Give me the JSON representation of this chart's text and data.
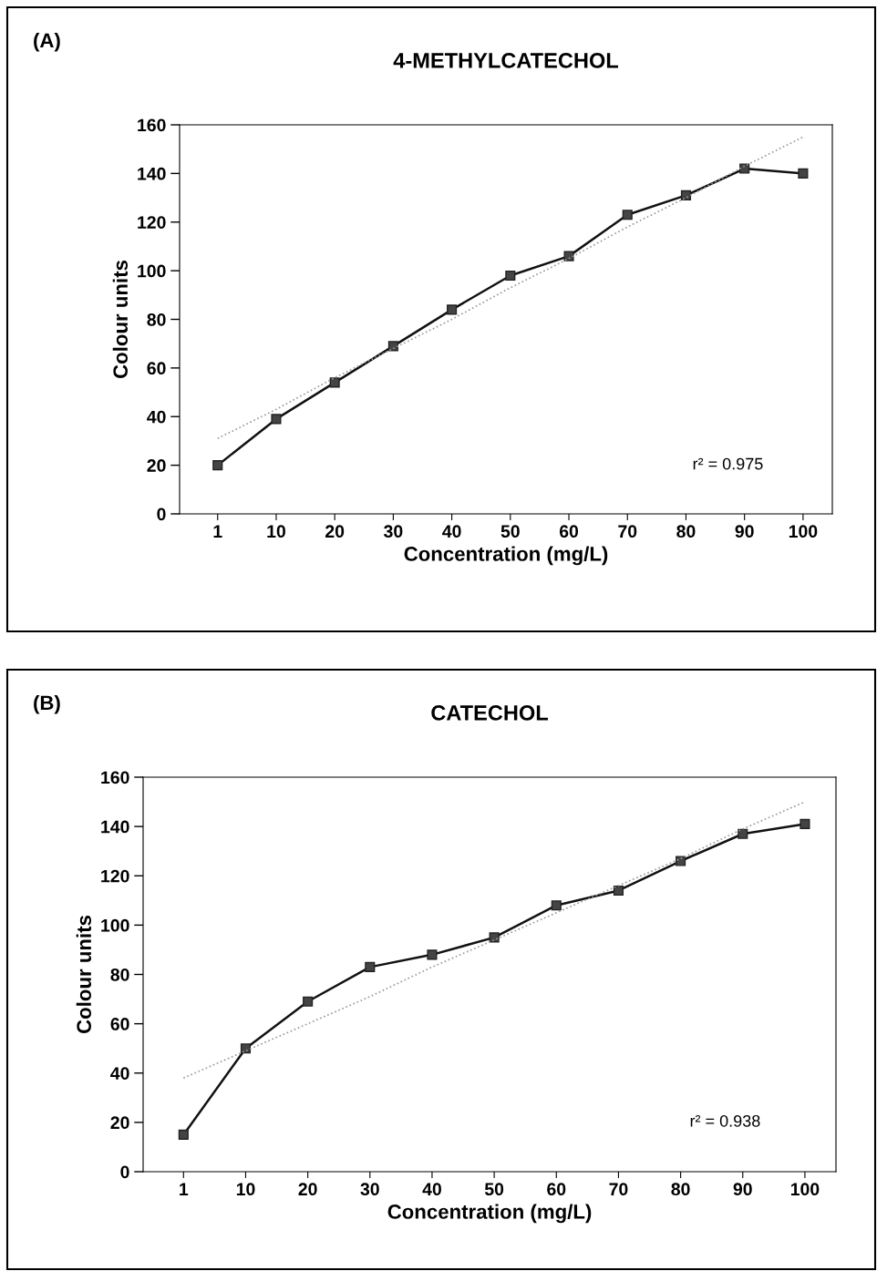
{
  "chart_data": [
    {
      "type": "line",
      "title": "4-METHYLCATECHOL",
      "xlabel": "Concentration (mg/L)",
      "ylabel": "Colour units",
      "categories": [
        "1",
        "10",
        "20",
        "30",
        "40",
        "50",
        "60",
        "70",
        "80",
        "90",
        "100"
      ],
      "series": [
        {
          "color": "#111111",
          "marker": "square",
          "line_style": "solid",
          "values": [
            20,
            39,
            54,
            69,
            84,
            98,
            106,
            123,
            131,
            142,
            140
          ]
        },
        {
          "color": "#999999",
          "marker": "none",
          "line_style": "dotted",
          "values": [
            31,
            43,
            56,
            68,
            80,
            93,
            105,
            118,
            130,
            143,
            155
          ]
        }
      ],
      "ylim": [
        0,
        160
      ],
      "yticks": [
        0,
        20,
        40,
        60,
        80,
        100,
        120,
        140,
        160
      ],
      "grid": false,
      "legend": false,
      "annotations": [
        "(A)",
        "r² = 0.975"
      ]
    },
    {
      "type": "line",
      "title": "CATECHOL",
      "xlabel": "Concentration (mg/L)",
      "ylabel": "Colour units",
      "categories": [
        "1",
        "10",
        "20",
        "30",
        "40",
        "50",
        "60",
        "70",
        "80",
        "90",
        "100"
      ],
      "series": [
        {
          "color": "#111111",
          "marker": "square",
          "line_style": "solid",
          "values": [
            15,
            50,
            69,
            83,
            88,
            95,
            108,
            114,
            126,
            137,
            141
          ]
        },
        {
          "color": "#999999",
          "marker": "none",
          "line_style": "dotted",
          "values": [
            38,
            49,
            60,
            71,
            83,
            94,
            105,
            116,
            127,
            139,
            150
          ]
        }
      ],
      "ylim": [
        0,
        160
      ],
      "yticks": [
        0,
        20,
        40,
        60,
        80,
        100,
        120,
        140,
        160
      ],
      "grid": false,
      "legend": false,
      "annotations": [
        "(B)",
        "r² = 0.938"
      ]
    }
  ]
}
